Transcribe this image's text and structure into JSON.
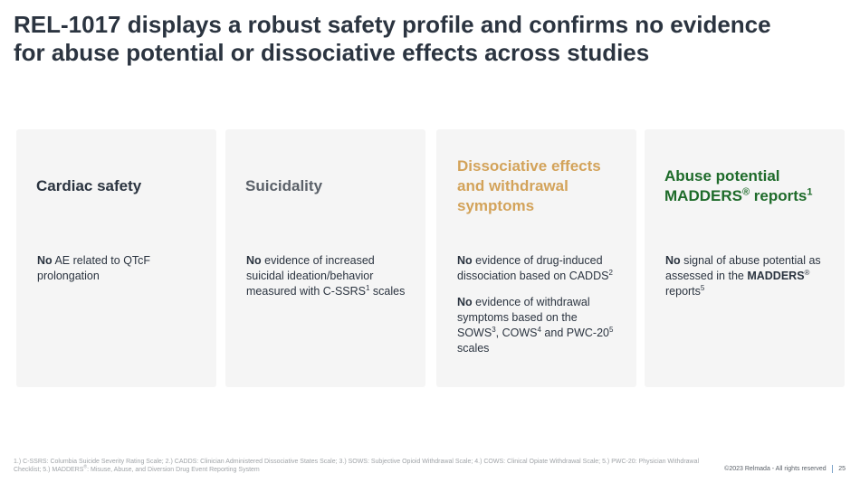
{
  "title": {
    "line1": "REL-1017 displays a robust safety profile and confirms no evidence",
    "line2": "for abuse potential or dissociative effects across studies"
  },
  "colors": {
    "card_bg": "#f5f5f5",
    "dark_heading": "#2b3440",
    "gray_heading": "#5b6169",
    "gold_heading": "#d3a35a",
    "green_heading": "#1e6b2a"
  },
  "cards": [
    {
      "heading": "Cardiac safety",
      "body": [
        {
          "bold": "No",
          "text": " AE related to QTcF prolongation"
        }
      ]
    },
    {
      "heading": "Suicidality",
      "body": [
        {
          "bold": "No",
          "text": " evidence of increased suicidal ideation/behavior measured with C-SSRS",
          "sup": "1",
          "after": " scales"
        }
      ]
    },
    {
      "heading": "Dissociative effects and withdrawal symptoms",
      "body": [
        {
          "bold": "No",
          "text": " evidence of drug-induced dissociation based on CADDS",
          "sup": "2"
        },
        {
          "bold": "No",
          "text": " evidence of withdrawal symptoms based on the SOWS",
          "sup": "3",
          "mid": ", COWS",
          "sup2": "4",
          "mid2": " and PWC-20",
          "sup3": "5",
          "after": " scales"
        }
      ]
    },
    {
      "heading": "Abuse potential",
      "heading_line2": "MADDERS",
      "heading_reg": "®",
      "heading_tail": " reports",
      "heading_sup": "1",
      "body": [
        {
          "bold": "No",
          "text": " signal of abuse potential as assessed in the ",
          "bold2": "MADDERS",
          "sup": "®",
          "after": " reports",
          "sup2": "5"
        }
      ]
    }
  ],
  "footnote": {
    "part1": "1.) C-SSRS: Columbia Suicide Severity Rating Scale; 2.) CADDS: Clinician Administered Dissociative States Scale; 3.) SOWS: Subjective Opioid Withdrawal Scale; 4.) COWS: Clinical Opiate Withdrawal Scale; 5.) PWC-20: Physician Withdrawal Checklist; 5.) MADDERS",
    "reg": "®",
    "part2": ": Misuse, Abuse, and Diversion Drug Event Reporting System"
  },
  "footer": {
    "copyright": "©2023 Relmada - All rights reserved",
    "page_number": "25"
  }
}
